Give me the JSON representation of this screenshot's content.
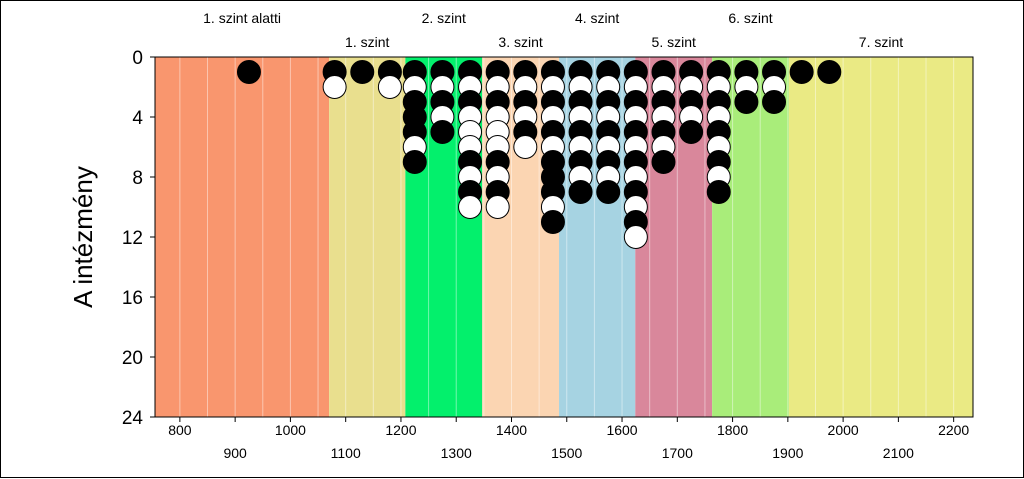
{
  "chart_data": {
    "type": "scatter",
    "title": "",
    "ylabel": "A intézmény",
    "xlabel": "",
    "x_domain": [
      755,
      2235
    ],
    "ylim": [
      0,
      24
    ],
    "y_inverted": true,
    "y_ticks": [
      "0",
      "4",
      "8",
      "12",
      "16",
      "20",
      "24"
    ],
    "x_ticks_upper": [
      "800",
      "1000",
      "1200",
      "1400",
      "1600",
      "1800",
      "2000",
      "2200"
    ],
    "x_ticks_lower": [
      "900",
      "1100",
      "1300",
      "1500",
      "1700",
      "1900",
      "2100"
    ],
    "bands": [
      {
        "label": "1. szint alatti",
        "label_row": "top",
        "x0": 755,
        "x1": 1070,
        "color": "#f9966e"
      },
      {
        "label": "1. szint",
        "label_row": "bottom",
        "x0": 1070,
        "x1": 1208,
        "color": "#e9df8e"
      },
      {
        "label": "2. szint",
        "label_row": "top",
        "x0": 1208,
        "x1": 1347,
        "color": "#03f06c"
      },
      {
        "label": "3. szint",
        "label_row": "bottom",
        "x0": 1347,
        "x1": 1486,
        "color": "#fbd5b2"
      },
      {
        "label": "4. szint",
        "label_row": "top",
        "x0": 1486,
        "x1": 1624,
        "color": "#a6d3e2"
      },
      {
        "label": "5. szint",
        "label_row": "bottom",
        "x0": 1624,
        "x1": 1763,
        "color": "#d9879b"
      },
      {
        "label": "6. szint",
        "label_row": "top",
        "x0": 1763,
        "x1": 1902,
        "color": "#a9ed7a"
      },
      {
        "label": "7. szint",
        "label_row": "bottom",
        "x0": 1902,
        "x1": 2235,
        "color": "#eaea84"
      }
    ],
    "series": [
      {
        "x": 925,
        "values": [
          "black"
        ]
      },
      {
        "x": 1080,
        "values": [
          "black",
          "white"
        ]
      },
      {
        "x": 1130,
        "values": [
          "black"
        ]
      },
      {
        "x": 1180,
        "values": [
          "black",
          "white"
        ]
      },
      {
        "x": 1225,
        "values": [
          "black",
          "white",
          "black",
          "black",
          "black",
          "white",
          "black"
        ]
      },
      {
        "x": 1275,
        "values": [
          "black",
          "white",
          "black",
          "white",
          "black"
        ]
      },
      {
        "x": 1325,
        "values": [
          "black",
          "white",
          "black",
          "white",
          "white",
          "white",
          "black",
          "white",
          "black",
          "white"
        ]
      },
      {
        "x": 1375,
        "values": [
          "black",
          "white",
          "black",
          "white",
          "white",
          "white",
          "black",
          "white",
          "black",
          "white"
        ]
      },
      {
        "x": 1425,
        "values": [
          "black",
          "white",
          "black",
          "white",
          "black",
          "white"
        ]
      },
      {
        "x": 1475,
        "values": [
          "black",
          "white",
          "black",
          "white",
          "black",
          "white",
          "black",
          "black",
          "black",
          "white",
          "black"
        ]
      },
      {
        "x": 1525,
        "values": [
          "black",
          "white",
          "black",
          "white",
          "black",
          "white",
          "black",
          "white",
          "black"
        ]
      },
      {
        "x": 1575,
        "values": [
          "black",
          "white",
          "black",
          "white",
          "black",
          "white",
          "black",
          "white",
          "black"
        ]
      },
      {
        "x": 1625,
        "values": [
          "black",
          "white",
          "black",
          "white",
          "black",
          "white",
          "black",
          "white",
          "black",
          "white",
          "black",
          "white"
        ]
      },
      {
        "x": 1675,
        "values": [
          "black",
          "white",
          "black",
          "white",
          "black",
          "white",
          "black"
        ]
      },
      {
        "x": 1725,
        "values": [
          "black",
          "white",
          "black",
          "white",
          "black"
        ]
      },
      {
        "x": 1775,
        "values": [
          "black",
          "white",
          "black",
          "white",
          "black",
          "white",
          "black",
          "white",
          "black"
        ]
      },
      {
        "x": 1825,
        "values": [
          "black",
          "white",
          "black"
        ]
      },
      {
        "x": 1875,
        "values": [
          "black",
          "white",
          "black"
        ]
      },
      {
        "x": 1925,
        "values": [
          "black"
        ]
      },
      {
        "x": 1975,
        "values": [
          "black"
        ]
      }
    ]
  }
}
